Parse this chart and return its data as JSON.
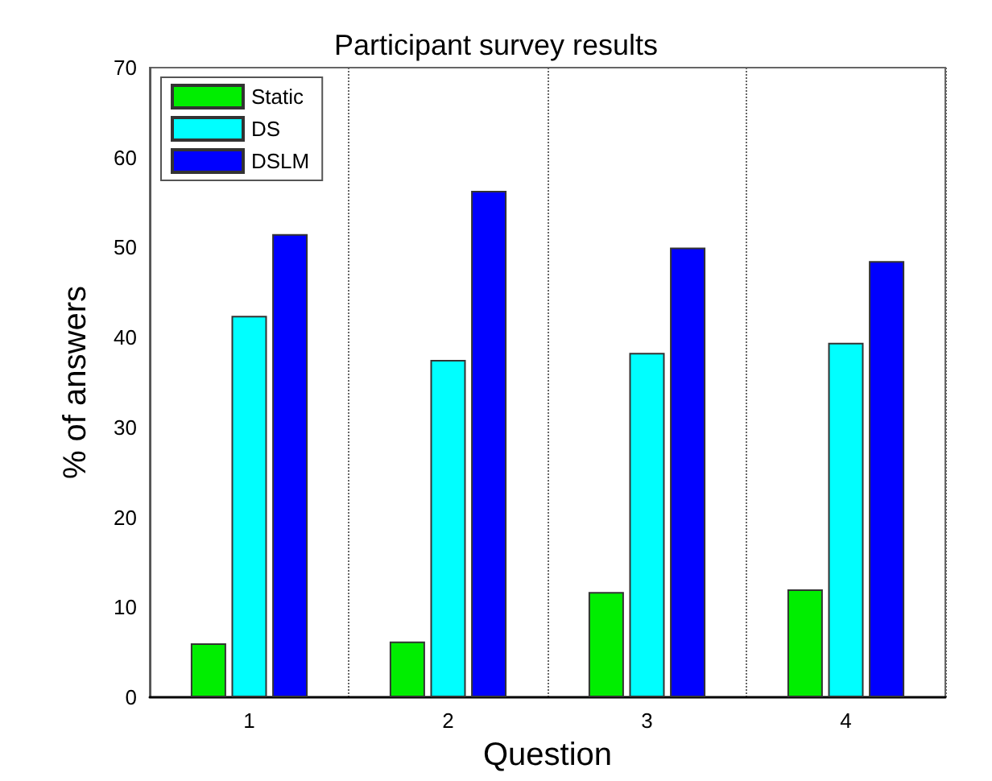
{
  "chart_data": {
    "type": "bar",
    "title": "Participant survey results",
    "xlabel": "Question",
    "ylabel": "% of answers",
    "categories": [
      "1",
      "2",
      "3",
      "4"
    ],
    "series": [
      {
        "name": "Static",
        "color": "#00ee00",
        "values": [
          6.0,
          6.2,
          11.7,
          12.0
        ]
      },
      {
        "name": "DS",
        "color": "#00ffff",
        "values": [
          42.4,
          37.5,
          38.3,
          39.4
        ]
      },
      {
        "name": "DSLM",
        "color": "#0000ff",
        "values": [
          51.5,
          56.3,
          50.0,
          48.5
        ]
      }
    ],
    "ylim": [
      0,
      70
    ],
    "yticks": [
      0,
      10,
      20,
      30,
      40,
      50,
      60,
      70
    ],
    "grid": "x",
    "legend": "top left"
  }
}
